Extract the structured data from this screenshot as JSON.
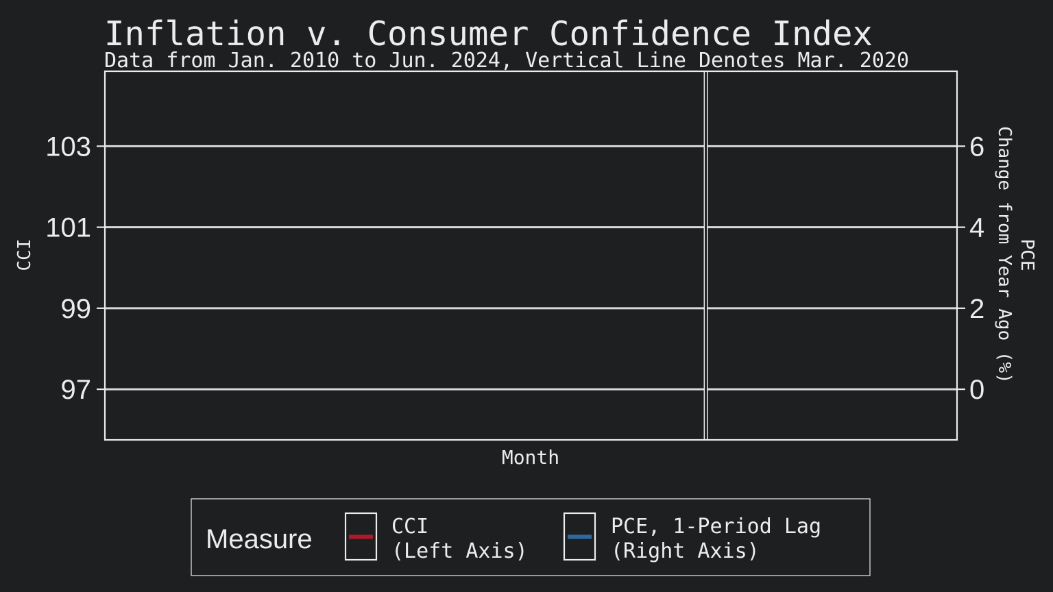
{
  "colors": {
    "background": "#1e1f21",
    "foreground": "#ececec",
    "grid": "#d9d9d9",
    "cci_series": "#b2182b",
    "pce_series": "#2f6a9e"
  },
  "chart_data": {
    "type": "line",
    "title": "Inflation v. Consumer Confidence Index",
    "subtitle": "Data from Jan. 2010 to Jun. 2024, Vertical Line Denotes Mar. 2020",
    "xlabel": "Month",
    "ylabel_left": "CCI",
    "ylabel_right": [
      "PCE",
      "Change from Year Ago (%)"
    ],
    "x_range": [
      "2010-01",
      "2024-06"
    ],
    "vline_x": "2020-03",
    "ylim_left": [
      95.75,
      104.85
    ],
    "ylim_right": [
      -1.25,
      7.85
    ],
    "yticks_left": [
      97,
      99,
      101,
      103
    ],
    "yticks_left_labels": [
      "97",
      "99",
      "101",
      "103"
    ],
    "yticks_right": [
      0,
      2,
      4,
      6
    ],
    "yticks_right_labels": [
      "0",
      "2",
      "4",
      "6"
    ],
    "grid": true,
    "legend_position": "bottom",
    "legend": {
      "title": "Measure",
      "entries": [
        {
          "line1": "CCI",
          "line2": "(Left Axis)",
          "color": "#b2182b"
        },
        {
          "line1": "PCE, 1-Period Lag",
          "line2": "(Right Axis)",
          "color": "#2f6a9e"
        }
      ]
    },
    "series": [
      {
        "name": "CCI",
        "axis": "left",
        "values": []
      },
      {
        "name": "PCE, 1-Period Lag",
        "axis": "right",
        "values": []
      }
    ]
  }
}
